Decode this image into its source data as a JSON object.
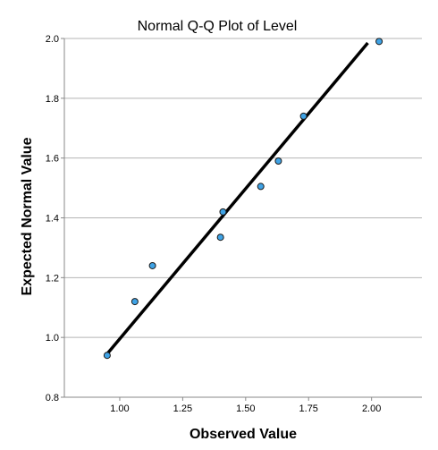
{
  "chart_data": {
    "type": "scatter",
    "title": "Normal Q-Q Plot of Level",
    "xlabel": "Observed Value",
    "ylabel": "Expected Normal Value",
    "xlim": [
      0.78,
      2.2
    ],
    "ylim": [
      0.8,
      2.0
    ],
    "x_ticks": [
      "1.00",
      "1.25",
      "1.50",
      "1.75",
      "2.00"
    ],
    "x_tick_values": [
      1.0,
      1.25,
      1.5,
      1.75,
      2.0
    ],
    "y_ticks": [
      "0.8",
      "1.0",
      "1.2",
      "1.4",
      "1.6",
      "1.8",
      "2.0"
    ],
    "y_tick_values": [
      0.8,
      1.0,
      1.2,
      1.4,
      1.6,
      1.8,
      2.0
    ],
    "grid": "horizontal",
    "points": [
      {
        "x": 0.95,
        "y": 0.94
      },
      {
        "x": 1.06,
        "y": 1.12
      },
      {
        "x": 1.13,
        "y": 1.24
      },
      {
        "x": 1.4,
        "y": 1.335
      },
      {
        "x": 1.41,
        "y": 1.42
      },
      {
        "x": 1.56,
        "y": 1.505
      },
      {
        "x": 1.63,
        "y": 1.59
      },
      {
        "x": 1.73,
        "y": 1.74
      },
      {
        "x": 2.03,
        "y": 1.99
      }
    ],
    "reference_line": {
      "x": [
        0.945,
        1.985
      ],
      "y": [
        0.94,
        1.985
      ]
    },
    "colors": {
      "point_fill": "#3fa3e6",
      "point_stroke": "#1a1a1a",
      "line": "#000000",
      "grid": "#b4b4b4",
      "axis": "#888888"
    }
  }
}
